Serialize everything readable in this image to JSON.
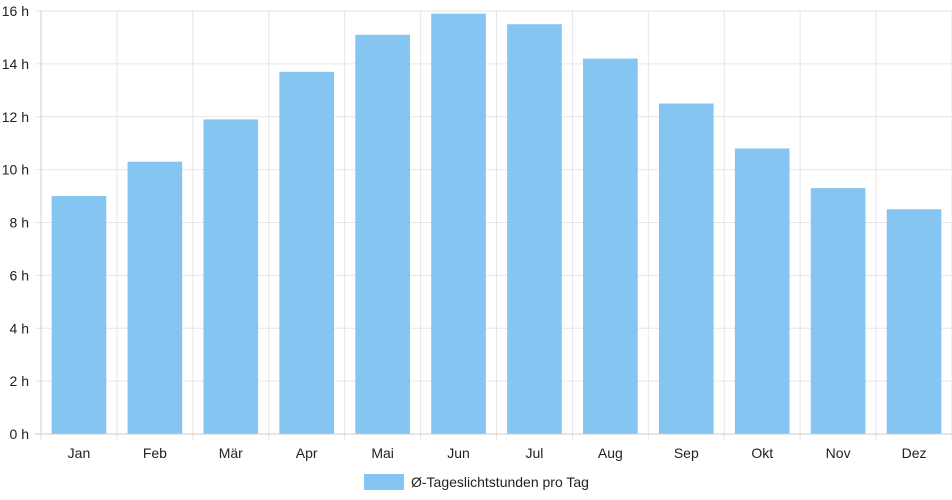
{
  "chart_data": {
    "type": "bar",
    "categories": [
      "Jan",
      "Feb",
      "Mär",
      "Apr",
      "Mai",
      "Jun",
      "Jul",
      "Aug",
      "Sep",
      "Okt",
      "Nov",
      "Dez"
    ],
    "series": [
      {
        "name": "Ø-Tageslichtstunden pro Tag",
        "values": [
          9.0,
          10.3,
          11.9,
          13.7,
          15.1,
          15.9,
          15.5,
          14.2,
          12.5,
          10.8,
          9.3,
          8.5
        ],
        "color": "#86c5f1"
      }
    ],
    "y_ticks": [
      {
        "value": 0,
        "label": "0 h"
      },
      {
        "value": 2,
        "label": "2 h"
      },
      {
        "value": 4,
        "label": "4 h"
      },
      {
        "value": 6,
        "label": "6 h"
      },
      {
        "value": 8,
        "label": "8 h"
      },
      {
        "value": 10,
        "label": "10 h"
      },
      {
        "value": 12,
        "label": "12 h"
      },
      {
        "value": 14,
        "label": "14 h"
      },
      {
        "value": 16,
        "label": "16 h"
      }
    ],
    "ylim": [
      0,
      16
    ],
    "grid": true,
    "legend_position": "bottom-center",
    "grid_color": "#e6e6e6",
    "axis_color": "#cccccc"
  }
}
